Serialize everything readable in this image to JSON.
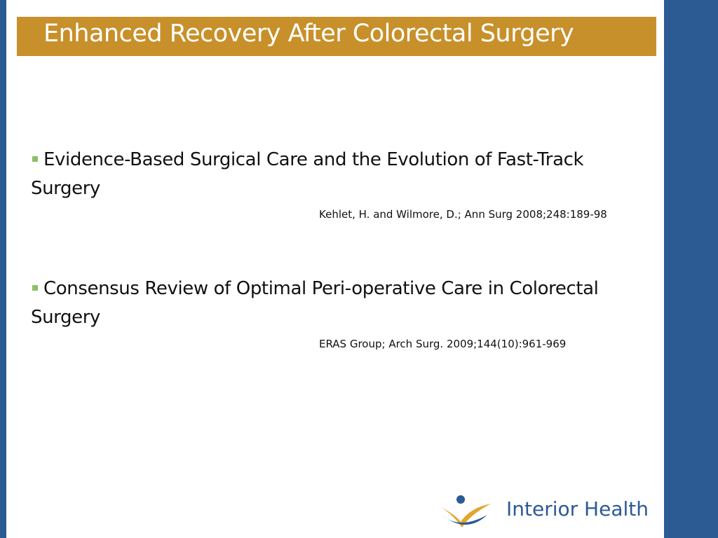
{
  "header": {
    "title": "Enhanced Recovery After Colorectal Surgery"
  },
  "items": [
    {
      "text": "Evidence-Based Surgical Care and the Evolution of Fast-Track Surgery",
      "citation": "Kehlet, H. and Wilmore, D.; Ann Surg 2008;248:189-98"
    },
    {
      "text": "Consensus Review of Optimal Peri-operative Care in Colorectal Surgery",
      "citation": "ERAS Group; Arch Surg. 2009;144(10):961-969"
    }
  ],
  "logo": {
    "text": "Interior Health"
  }
}
